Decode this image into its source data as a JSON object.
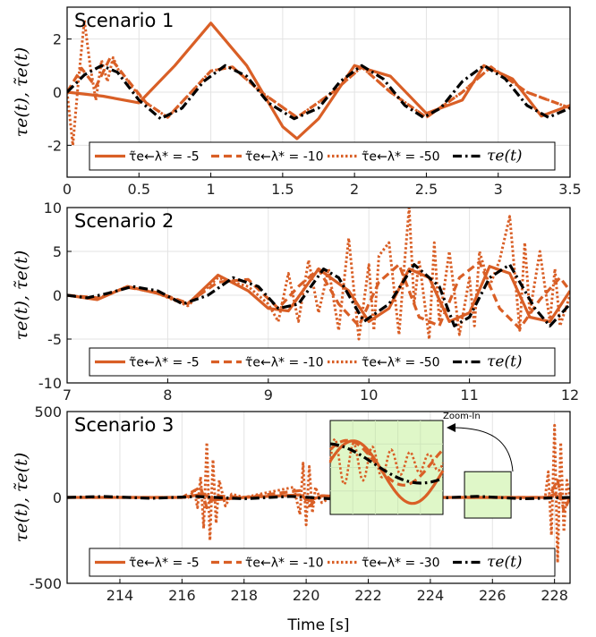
{
  "colors": {
    "orange": "#d95f26",
    "black": "#000000",
    "grid": "#e3e3e3",
    "zoom_fill": "#dff7c8",
    "zoom_edge": "#000000"
  },
  "y_axis_label": "τe(t), τ̃e(t)",
  "x_axis_label": "Time [s]",
  "chart_data": [
    {
      "type": "line",
      "title": "Scenario 1",
      "xlim": [
        0,
        3.5
      ],
      "ylim": [
        -3.2,
        3.2
      ],
      "xticks": [
        0,
        0.5,
        1,
        1.5,
        2,
        2.5,
        3,
        3.5
      ],
      "xtick_labels": [
        "0",
        "0.5",
        "1",
        "1.5",
        "2",
        "2.5",
        "3",
        "3.5"
      ],
      "yticks": [
        -2,
        0,
        2
      ],
      "ytick_labels": [
        "-2",
        "0",
        "2"
      ],
      "grid": true,
      "legend_position": "bottom",
      "series": [
        {
          "name": "τ̃e←λ* = -5",
          "style": "solid",
          "x": [
            0,
            0.25,
            0.5,
            0.75,
            1.0,
            1.25,
            1.5,
            1.6,
            1.75,
            2.0,
            2.25,
            2.5,
            2.75,
            2.9,
            3.1,
            3.3,
            3.5
          ],
          "y": [
            0.0,
            -0.15,
            -0.4,
            1.0,
            2.6,
            1.0,
            -1.3,
            -1.75,
            -1.0,
            1.0,
            0.6,
            -0.8,
            -0.3,
            1.0,
            0.5,
            -0.9,
            -0.5
          ]
        },
        {
          "name": "τ̃e←λ* = -10",
          "style": "dashed",
          "x": [
            0,
            0.1,
            0.2,
            0.3,
            0.4,
            0.55,
            0.7,
            1.0,
            1.15,
            1.35,
            1.6,
            1.85,
            2.05,
            2.25,
            2.5,
            2.75,
            2.95,
            3.2,
            3.5
          ],
          "y": [
            0.0,
            0.9,
            0.2,
            1.3,
            0.6,
            -0.4,
            -0.95,
            0.8,
            0.95,
            0.0,
            -0.95,
            0.0,
            0.95,
            0.0,
            -0.95,
            0.0,
            0.95,
            0.0,
            -0.6
          ]
        },
        {
          "name": "τ̃e←λ* = -50",
          "style": "dotted",
          "x": [
            0,
            0.04,
            0.08,
            0.12,
            0.16,
            0.2,
            0.24,
            0.28,
            0.32,
            0.36,
            0.4,
            0.45,
            0.55,
            0.7,
            1.0,
            1.15,
            1.35,
            1.6,
            1.85,
            2.05,
            2.25,
            2.5,
            2.75,
            2.95,
            3.2,
            3.5
          ],
          "y": [
            0.0,
            -2.0,
            0.5,
            2.7,
            1.0,
            -0.3,
            1.2,
            0.4,
            1.3,
            0.8,
            0.6,
            0.2,
            -0.4,
            -0.95,
            0.8,
            0.95,
            0.0,
            -0.95,
            0.0,
            0.95,
            0.0,
            -0.95,
            0.0,
            0.95,
            0.0,
            -0.6
          ]
        },
        {
          "name": "τe(t)",
          "style": "dashdot",
          "x": [
            0,
            0.12,
            0.24,
            0.35,
            0.5,
            0.65,
            0.8,
            0.95,
            1.1,
            1.25,
            1.4,
            1.58,
            1.75,
            1.9,
            2.05,
            2.2,
            2.35,
            2.48,
            2.6,
            2.75,
            2.9,
            3.05,
            3.2,
            3.35,
            3.5
          ],
          "y": [
            0.0,
            0.65,
            1.0,
            0.75,
            -0.3,
            -1.0,
            -0.6,
            0.4,
            1.0,
            0.6,
            -0.4,
            -1.0,
            -0.6,
            0.4,
            1.0,
            0.5,
            -0.5,
            -0.95,
            -0.6,
            0.4,
            1.0,
            0.5,
            -0.5,
            -0.95,
            -0.6
          ]
        }
      ]
    },
    {
      "type": "line",
      "title": "Scenario 2",
      "xlim": [
        7,
        12
      ],
      "ylim": [
        -10,
        10
      ],
      "xticks": [
        7,
        8,
        9,
        10,
        11,
        12
      ],
      "xtick_labels": [
        "7",
        "8",
        "9",
        "10",
        "11",
        "12"
      ],
      "yticks": [
        -10,
        -5,
        0,
        5,
        10
      ],
      "ytick_labels": [
        "-10",
        "-5",
        "0",
        "5",
        "10"
      ],
      "grid": true,
      "legend_position": "bottom",
      "series": [
        {
          "name": "τ̃e←λ* = -5",
          "style": "solid",
          "x": [
            7,
            7.3,
            7.6,
            7.9,
            8.2,
            8.5,
            8.8,
            9.0,
            9.2,
            9.5,
            9.8,
            10.0,
            10.2,
            10.4,
            10.6,
            10.8,
            11.0,
            11.2,
            11.4,
            11.6,
            11.8,
            12.0
          ],
          "y": [
            0,
            -0.5,
            1.0,
            0.2,
            -1.0,
            2.3,
            0.5,
            -1.5,
            -1.8,
            3.0,
            0.5,
            -3.0,
            -1.5,
            3.0,
            2.0,
            -3.0,
            -2.0,
            3.3,
            2.5,
            -2.5,
            -3.0,
            0.5
          ]
        },
        {
          "name": "τ̃e←λ* = -10",
          "style": "dashed",
          "x": [
            7,
            7.3,
            7.6,
            7.9,
            8.2,
            8.5,
            8.8,
            9.1,
            9.3,
            9.5,
            9.7,
            9.9,
            10.1,
            10.3,
            10.5,
            10.7,
            10.9,
            11.1,
            11.3,
            11.5,
            11.7,
            11.9,
            12.0
          ],
          "y": [
            0,
            -0.3,
            0.9,
            0.3,
            -0.9,
            1.5,
            1.8,
            -1.5,
            1.0,
            3.0,
            -1.0,
            -3.5,
            1.5,
            3.5,
            -2.5,
            -3.5,
            2.0,
            3.8,
            -1.5,
            -3.8,
            -0.5,
            2.0,
            0.5
          ]
        },
        {
          "name": "τ̃e←λ* = -50",
          "style": "dotted",
          "x": [
            7,
            7.3,
            7.6,
            7.9,
            8.2,
            8.5,
            8.8,
            9.0,
            9.1,
            9.2,
            9.3,
            9.4,
            9.5,
            9.6,
            9.7,
            9.8,
            9.9,
            10.0,
            10.05,
            10.1,
            10.2,
            10.3,
            10.35,
            10.4,
            10.45,
            10.5,
            10.6,
            10.65,
            10.7,
            10.8,
            10.9,
            11.0,
            11.05,
            11.1,
            11.2,
            11.3,
            11.4,
            11.5,
            11.55,
            11.6,
            11.7,
            11.8,
            11.85,
            11.9,
            12.0
          ],
          "y": [
            0,
            -0.4,
            1.0,
            0.2,
            -1.2,
            2.0,
            1.0,
            -1.0,
            -3.0,
            2.5,
            -3.0,
            4.0,
            -2.0,
            3.0,
            -4.0,
            6.5,
            -5.0,
            3.5,
            -4.0,
            4.5,
            6.0,
            -4.5,
            3.0,
            10.0,
            -1.0,
            4.0,
            -5.0,
            6.0,
            -3.0,
            5.0,
            -4.5,
            2.0,
            -3.5,
            5.0,
            1.0,
            4.0,
            9.0,
            -4.0,
            6.0,
            -2.0,
            5.0,
            -3.0,
            3.0,
            -3.5,
            0.0
          ]
        },
        {
          "name": "τe(t)",
          "style": "dashdot",
          "x": [
            7,
            7.2,
            7.4,
            7.65,
            7.9,
            8.15,
            8.4,
            8.65,
            8.9,
            9.1,
            9.3,
            9.55,
            9.7,
            9.95,
            10.2,
            10.45,
            10.7,
            10.85,
            11.0,
            11.2,
            11.4,
            11.65,
            11.8,
            12.0
          ],
          "y": [
            0,
            -0.3,
            0.2,
            1.0,
            0.5,
            -1.0,
            0.0,
            2.0,
            1.0,
            -1.5,
            -1.0,
            3.0,
            2.0,
            -3.0,
            -1.0,
            3.5,
            1.0,
            -3.5,
            -2.5,
            2.0,
            3.5,
            -1.5,
            -3.5,
            -1.0
          ]
        }
      ]
    },
    {
      "type": "line",
      "title": "Scenario 3",
      "xlim": [
        212.3,
        228.5
      ],
      "ylim": [
        -500,
        500
      ],
      "xticks": [
        214,
        216,
        218,
        220,
        222,
        224,
        226,
        228
      ],
      "xtick_labels": [
        "214",
        "216",
        "218",
        "220",
        "222",
        "224",
        "226",
        "228"
      ],
      "yticks": [
        -500,
        0,
        500
      ],
      "ytick_labels": [
        "-500",
        "0",
        "500"
      ],
      "grid": true,
      "legend_position": "bottom",
      "zoom_in_label": "Zoom-In",
      "zoom_source_x": [
        225.1,
        226.6
      ],
      "zoom_source_y": [
        -120,
        150
      ],
      "series": [
        {
          "name": "τ̃e←λ* = -5",
          "style": "solid",
          "x": [
            212.3,
            216.0,
            216.7,
            217.0,
            218.0,
            219.8,
            220.1,
            220.5,
            222.0,
            224.0,
            226.0,
            227.8,
            228.0,
            228.2,
            228.5
          ],
          "y": [
            0,
            0,
            20,
            -15,
            0,
            15,
            -20,
            10,
            0,
            0,
            0,
            0,
            20,
            -10,
            0
          ]
        },
        {
          "name": "τ̃e←λ* = -10",
          "style": "dashed",
          "x": [
            212.3,
            216.0,
            216.6,
            216.8,
            217.0,
            218.0,
            219.8,
            220.1,
            220.5,
            222.0,
            224.0,
            226.0,
            227.8,
            228.1,
            228.3,
            228.5
          ],
          "y": [
            0,
            0,
            60,
            -60,
            10,
            0,
            40,
            -50,
            10,
            0,
            0,
            0,
            0,
            100,
            -80,
            0
          ]
        },
        {
          "name": "τ̃e←λ* = -30",
          "style": "dotted",
          "x": [
            212.3,
            216.2,
            216.4,
            216.5,
            216.6,
            216.7,
            216.8,
            216.9,
            217.0,
            217.1,
            217.2,
            217.4,
            217.6,
            218.0,
            219.6,
            219.8,
            219.9,
            220.0,
            220.1,
            220.2,
            220.3,
            220.5,
            220.8,
            224.0,
            226.0,
            227.7,
            227.8,
            227.9,
            228.0,
            228.1,
            228.2,
            228.3,
            228.4,
            228.5
          ],
          "y": [
            0,
            0,
            40,
            -60,
            120,
            -180,
            320,
            -250,
            220,
            -150,
            100,
            -50,
            20,
            0,
            60,
            -100,
            200,
            -160,
            180,
            -90,
            60,
            -30,
            0,
            0,
            0,
            0,
            150,
            -220,
            420,
            -380,
            320,
            -200,
            100,
            0
          ]
        },
        {
          "name": "τe(t)",
          "style": "dashdot",
          "x": [
            212.3,
            213.5,
            215.0,
            216.5,
            218.0,
            219.5,
            221.0,
            222.5,
            224.0,
            225.5,
            227.0,
            228.5
          ],
          "y": [
            0,
            5,
            -5,
            5,
            -8,
            6,
            -10,
            8,
            -6,
            6,
            -8,
            0
          ]
        }
      ]
    }
  ]
}
